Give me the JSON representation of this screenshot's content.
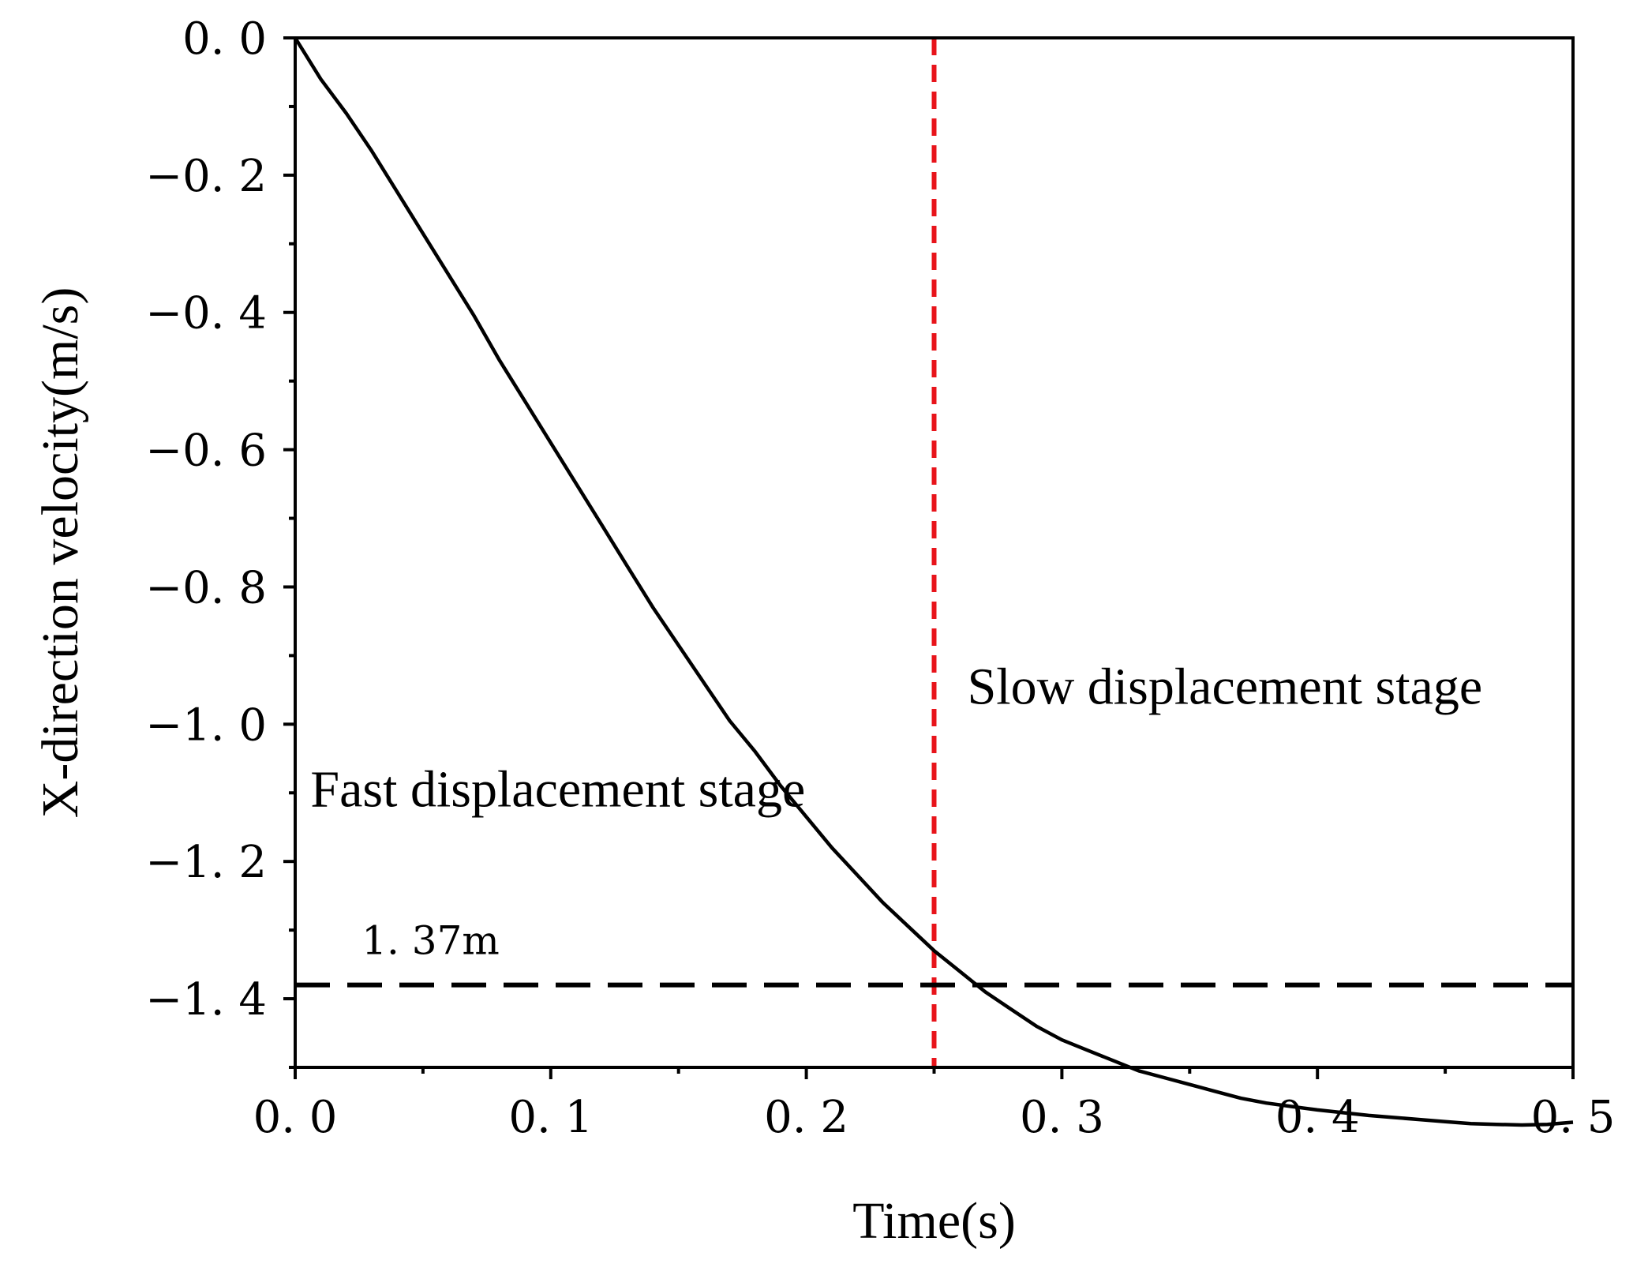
{
  "chart_data": {
    "type": "line",
    "title": "",
    "xlabel": "Time(s)",
    "ylabel": "X-direction velocity(m/s)",
    "xlim": [
      0,
      0.5
    ],
    "ylim": [
      -1.5,
      0
    ],
    "x_ticks": [
      0,
      0.1,
      0.2,
      0.3,
      0.4,
      0.5
    ],
    "x_tick_labels": [
      "0. 0",
      "0. 1",
      "0. 2",
      "0. 3",
      "0. 4",
      "0. 5"
    ],
    "x_minor_ticks": [
      0.05,
      0.15,
      0.25,
      0.35,
      0.45
    ],
    "y_ticks": [
      0,
      -0.2,
      -0.4,
      -0.6,
      -0.8,
      -1.0,
      -1.2,
      -1.4
    ],
    "y_tick_labels": [
      "0. 0",
      "−0. 2",
      "−0. 4",
      "−0. 6",
      "−0. 8",
      "−1. 0",
      "−1. 2",
      "−1. 4"
    ],
    "y_minor_ticks": [
      -0.1,
      -0.3,
      -0.5,
      -0.7,
      -0.9,
      -1.1,
      -1.3,
      -1.5
    ],
    "grid": false,
    "series": [
      {
        "name": "X-direction velocity",
        "color": "#000000",
        "x": [
          0,
          0.01,
          0.02,
          0.03,
          0.04,
          0.05,
          0.06,
          0.07,
          0.08,
          0.09,
          0.1,
          0.11,
          0.12,
          0.13,
          0.14,
          0.15,
          0.16,
          0.17,
          0.18,
          0.19,
          0.2,
          0.21,
          0.22,
          0.23,
          0.24,
          0.25,
          0.26,
          0.27,
          0.28,
          0.29,
          0.3,
          0.31,
          0.32,
          0.33,
          0.34,
          0.35,
          0.36,
          0.37,
          0.38,
          0.39,
          0.4,
          0.41,
          0.42,
          0.43,
          0.44,
          0.45,
          0.46,
          0.47,
          0.48,
          0.49,
          0.5
        ],
        "y": [
          0,
          -0.06,
          -0.11,
          -0.165,
          -0.225,
          -0.285,
          -0.345,
          -0.405,
          -0.47,
          -0.53,
          -0.59,
          -0.65,
          -0.71,
          -0.77,
          -0.83,
          -0.885,
          -0.94,
          -0.995,
          -1.04,
          -1.09,
          -1.135,
          -1.18,
          -1.22,
          -1.26,
          -1.295,
          -1.33,
          -1.36,
          -1.39,
          -1.415,
          -1.44,
          -1.46,
          -1.475,
          -1.49,
          -1.505,
          -1.515,
          -1.525,
          -1.535,
          -1.545,
          -1.552,
          -1.557,
          -1.562,
          -1.566,
          -1.57,
          -1.573,
          -1.576,
          -1.579,
          -1.582,
          -1.583,
          -1.584,
          -1.583,
          -1.58
        ]
      }
    ],
    "reference_lines": [
      {
        "orientation": "vertical",
        "x": 0.25,
        "color": "#e8141b",
        "style": "dashed"
      },
      {
        "orientation": "horizontal",
        "y": -1.38,
        "color": "#000000",
        "style": "dashed"
      }
    ],
    "annotations": {
      "fast_stage": {
        "text": "Fast displacement stage",
        "x": 0.006,
        "y": -1.12
      },
      "slow_stage": {
        "text": "Slow displacement stage",
        "x": 0.263,
        "y": -0.97
      },
      "limit_label": {
        "text": "1. 37m",
        "x": 0.026,
        "y": -1.335
      }
    }
  }
}
